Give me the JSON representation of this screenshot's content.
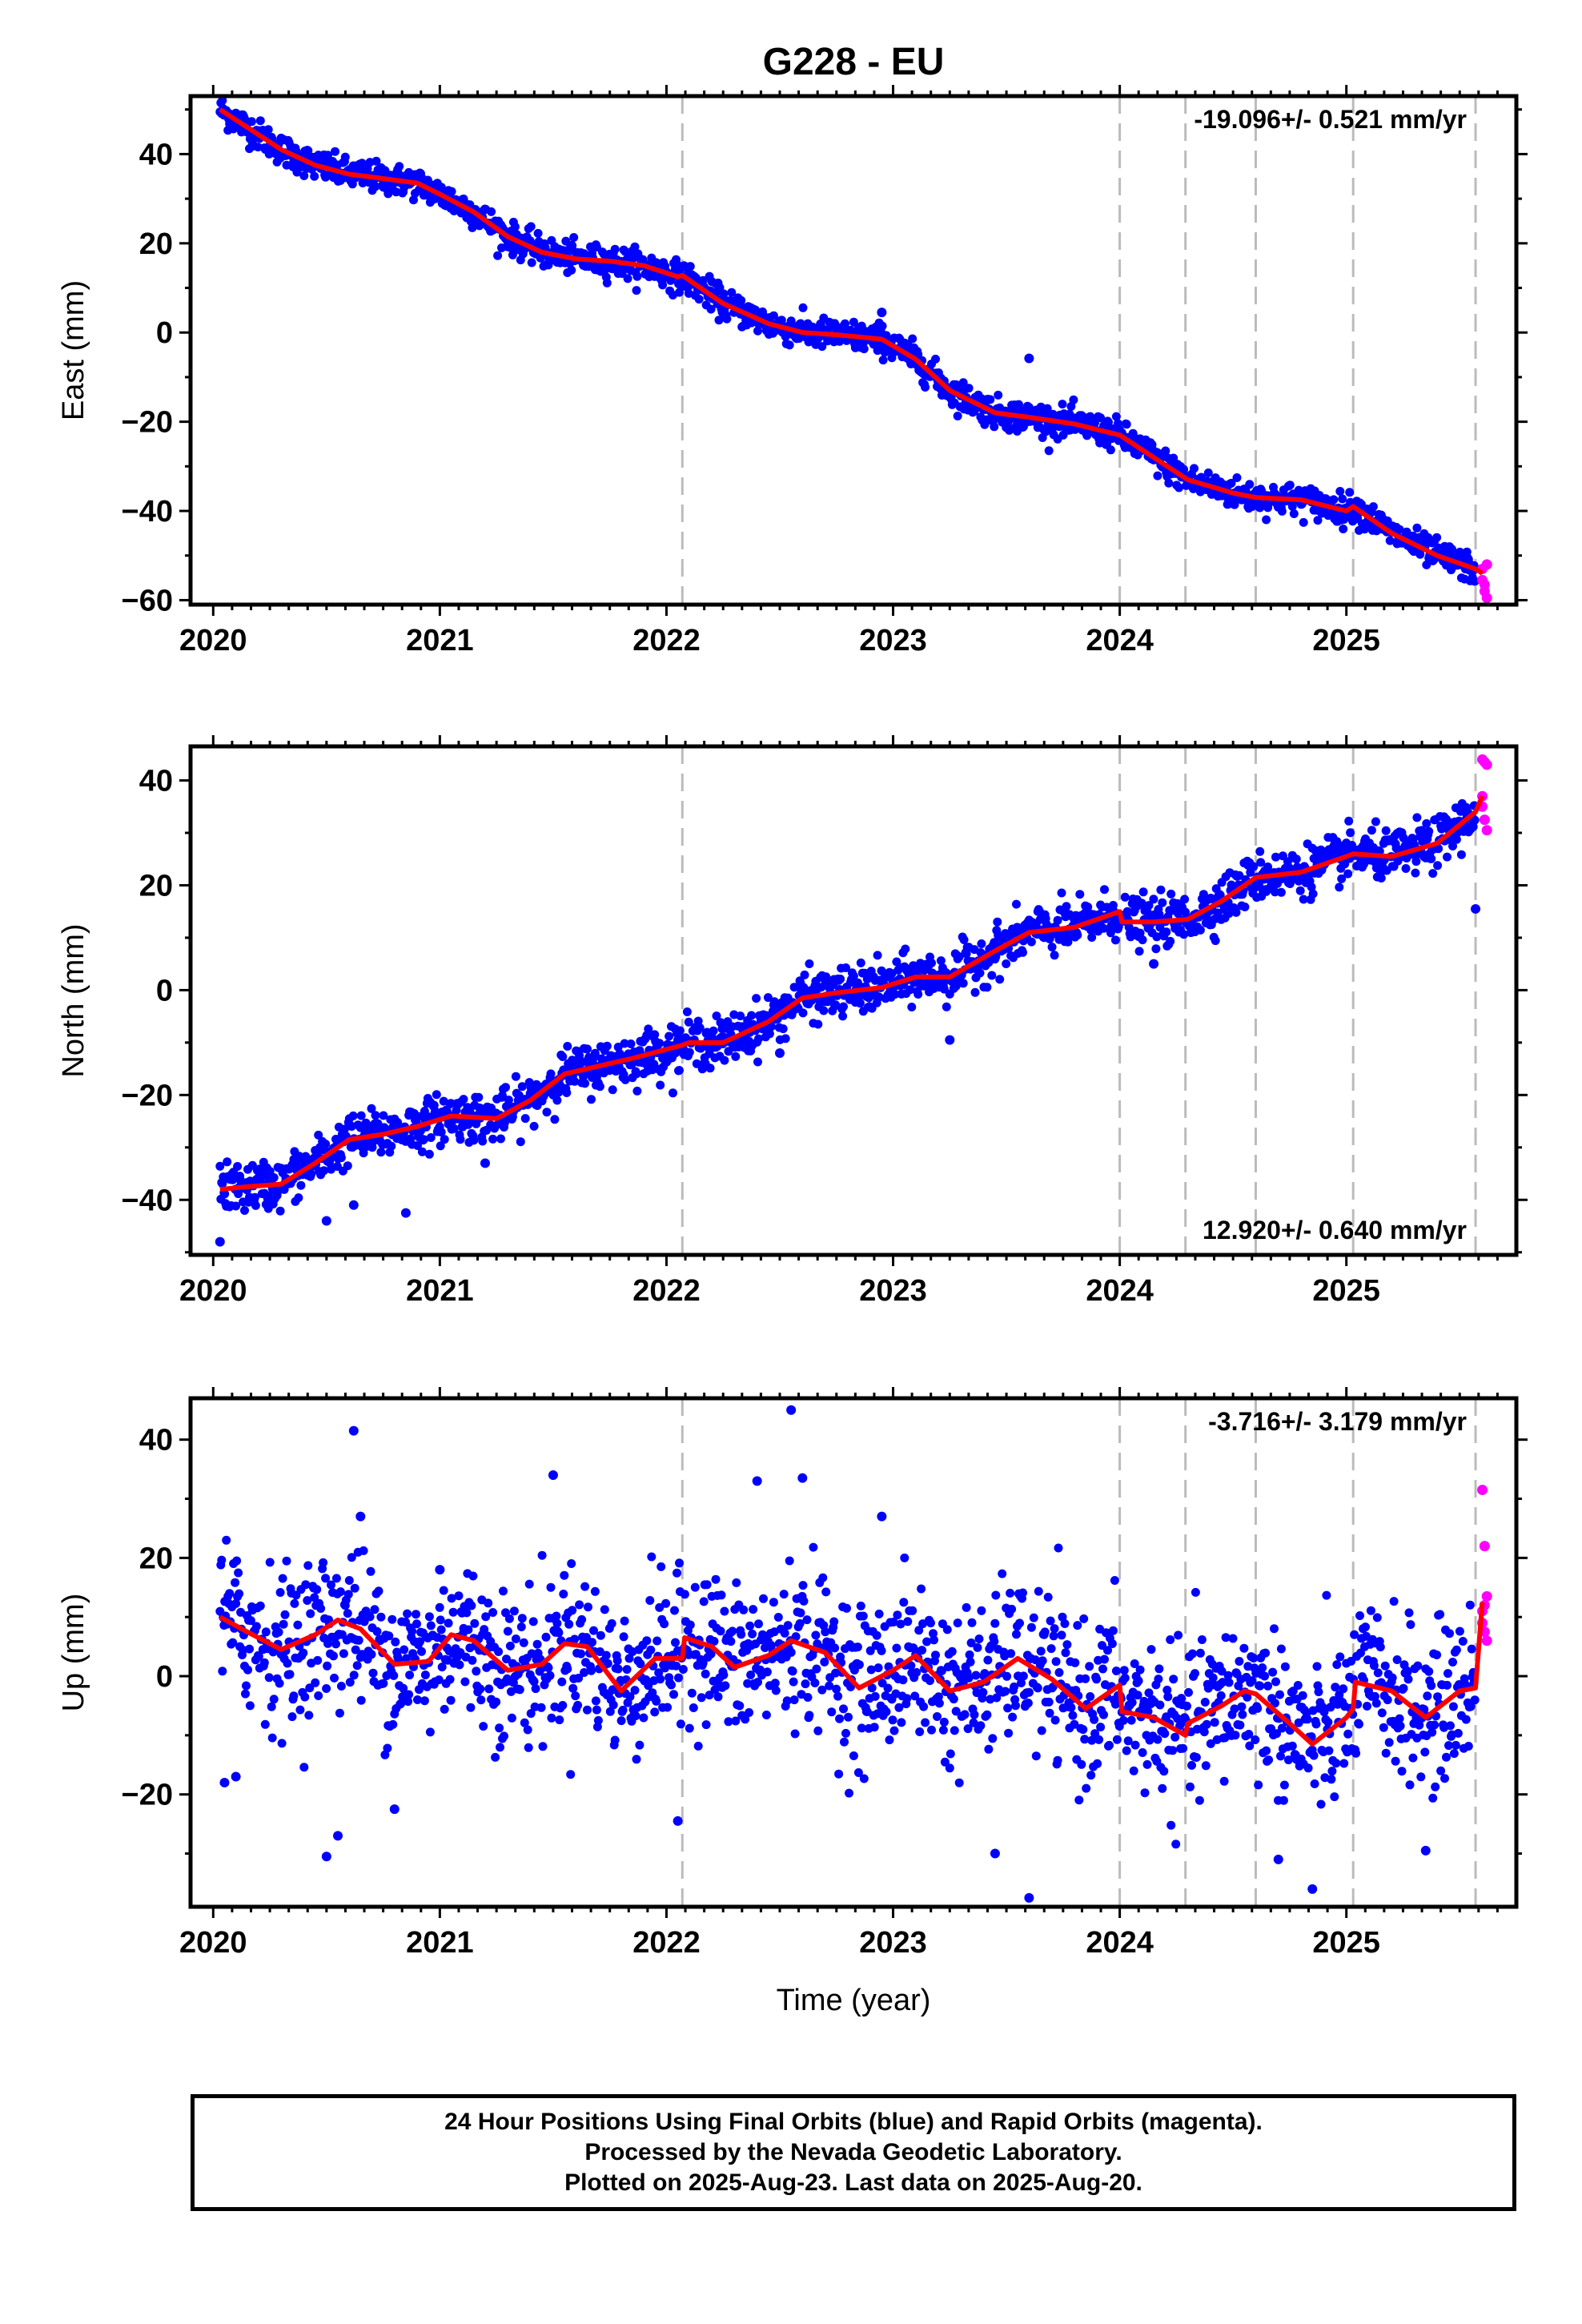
{
  "title": "G228 - EU",
  "xlabel": "Time (year)",
  "footer": {
    "line1": "24 Hour Positions Using Final Orbits (blue) and Rapid Orbits (magenta).",
    "line2": "Processed by the Nevada Geodetic Laboratory.",
    "line3": "Plotted on 2025-Aug-23. Last data on 2025-Aug-20."
  },
  "colors": {
    "final_orbits": "#0000ff",
    "rapid_orbits": "#ff00ff",
    "model": "#ff0000",
    "events": "#bbbbbb"
  },
  "chart_data": [
    {
      "type": "scatter",
      "ylabel": "East (mm)",
      "rate_text": "-19.096+/- 0.521 mm/yr",
      "rate_position": "top-right",
      "xlim": [
        2019.9,
        2025.75
      ],
      "ylim": [
        -61,
        53
      ],
      "xticks": [
        2020,
        2021,
        2022,
        2023,
        2024,
        2025
      ],
      "yticks": [
        40,
        20,
        0,
        -20,
        -40,
        -60
      ],
      "ytick_labels": [
        "40",
        "20",
        "0",
        "−20",
        "−40",
        "−60"
      ],
      "event_lines": [
        2022.07,
        2024.0,
        2024.29,
        2024.6,
        2025.03,
        2025.57
      ],
      "model": {
        "x": [
          2020.03,
          2020.15,
          2020.3,
          2020.45,
          2020.6,
          2020.75,
          2020.9,
          2021.0,
          2021.15,
          2021.3,
          2021.45,
          2021.6,
          2021.75,
          2021.9,
          2022.05,
          2022.07,
          2022.25,
          2022.45,
          2022.6,
          2022.75,
          2022.95,
          2023.1,
          2023.25,
          2023.45,
          2023.6,
          2023.8,
          2024.0,
          2024.15,
          2024.3,
          2024.5,
          2024.6,
          2024.8,
          2025.0,
          2025.03,
          2025.2,
          2025.4,
          2025.57,
          2025.6
        ],
        "y": [
          50,
          46,
          41,
          37.5,
          35.5,
          34.5,
          33.5,
          31,
          27,
          21.5,
          18,
          16.5,
          16,
          15,
          12.5,
          12.8,
          6.5,
          2,
          0,
          -0.5,
          -1.5,
          -6,
          -13,
          -18,
          -19,
          -20.5,
          -23,
          -28,
          -33,
          -36,
          -37,
          -37.5,
          -40,
          -39,
          -45,
          -50,
          -53,
          -54
        ]
      },
      "noise_scale": 1.7,
      "outliers": [
        [
          2023.6,
          -5.8
        ],
        [
          2022.95,
          4.5
        ]
      ],
      "rapid": {
        "x": [
          2025.6,
          2025.61,
          2025.62,
          2025.6,
          2025.62,
          2025.61
        ],
        "y": [
          -55.5,
          -58,
          -59.5,
          -53,
          -52,
          -56.5
        ]
      }
    },
    {
      "type": "scatter",
      "ylabel": "North (mm)",
      "rate_text": "12.920+/- 0.640 mm/yr",
      "rate_position": "bottom-right",
      "xlim": [
        2019.9,
        2025.75
      ],
      "ylim": [
        -50.5,
        46.5
      ],
      "xticks": [
        2020,
        2021,
        2022,
        2023,
        2024,
        2025
      ],
      "yticks": [
        40,
        20,
        0,
        -20,
        -40
      ],
      "ytick_labels": [
        "40",
        "20",
        "0",
        "−20",
        "−40"
      ],
      "event_lines": [
        2022.07,
        2024.0,
        2024.29,
        2024.6,
        2025.03,
        2025.57
      ],
      "model": {
        "x": [
          2020.03,
          2020.15,
          2020.3,
          2020.45,
          2020.6,
          2020.75,
          2020.9,
          2021.05,
          2021.25,
          2021.4,
          2021.55,
          2021.7,
          2021.85,
          2022.07,
          2022.1,
          2022.25,
          2022.45,
          2022.6,
          2022.75,
          2022.95,
          2023.1,
          2023.25,
          2023.45,
          2023.6,
          2023.8,
          2024.0,
          2024.01,
          2024.15,
          2024.3,
          2024.45,
          2024.6,
          2024.8,
          2025.0,
          2025.03,
          2025.2,
          2025.4,
          2025.57,
          2025.6
        ],
        "y": [
          -38,
          -37.5,
          -37,
          -33,
          -28.5,
          -27.5,
          -26,
          -24,
          -24.5,
          -21,
          -16,
          -14.5,
          -13,
          -10.5,
          -10,
          -10,
          -6,
          -1.5,
          -0.5,
          0.5,
          2.5,
          2.5,
          7.5,
          11,
          12,
          15,
          13,
          13,
          13.5,
          17,
          21.5,
          22.5,
          25.5,
          26,
          25.5,
          28,
          34,
          37
        ]
      },
      "noise_scale": 2.3,
      "outliers": [
        [
          2020.03,
          -48
        ],
        [
          2020.5,
          -44
        ],
        [
          2020.62,
          -41
        ],
        [
          2020.85,
          -42.5
        ],
        [
          2021.2,
          -33
        ],
        [
          2023.25,
          -9.5
        ],
        [
          2025.57,
          15.5
        ],
        [
          2024.15,
          5
        ],
        [
          2022.5,
          -12
        ]
      ],
      "rapid": {
        "x": [
          2025.6,
          2025.61,
          2025.62,
          2025.6,
          2025.61,
          2025.62,
          2025.6
        ],
        "y": [
          44,
          43.5,
          43,
          35,
          32.5,
          30.5,
          37
        ]
      }
    },
    {
      "type": "scatter",
      "ylabel": "Up (mm)",
      "rate_text": "-3.716+/- 3.179 mm/yr",
      "rate_position": "top-right",
      "xlim": [
        2019.9,
        2025.75
      ],
      "ylim": [
        -39,
        47
      ],
      "xticks": [
        2020,
        2021,
        2022,
        2023,
        2024,
        2025
      ],
      "yticks": [
        40,
        20,
        0,
        -20
      ],
      "ytick_labels": [
        "40",
        "20",
        "0",
        "−20"
      ],
      "event_lines": [
        2022.07,
        2024.0,
        2024.29,
        2024.6,
        2025.03,
        2025.57
      ],
      "model": {
        "x": [
          2020.03,
          2020.15,
          2020.3,
          2020.45,
          2020.55,
          2020.65,
          2020.8,
          2020.95,
          2021.05,
          2021.15,
          2021.3,
          2021.45,
          2021.55,
          2021.65,
          2021.8,
          2021.95,
          2022.07,
          2022.08,
          2022.2,
          2022.3,
          2022.45,
          2022.55,
          2022.7,
          2022.85,
          2023.0,
          2023.1,
          2023.25,
          2023.4,
          2023.55,
          2023.7,
          2023.85,
          2024.0,
          2024.01,
          2024.15,
          2024.29,
          2024.3,
          2024.45,
          2024.55,
          2024.6,
          2024.75,
          2024.85,
          2025.0,
          2025.03,
          2025.04,
          2025.2,
          2025.35,
          2025.5,
          2025.57,
          2025.6
        ],
        "y": [
          10,
          7.5,
          4.5,
          7,
          9.5,
          8,
          2,
          2.5,
          7,
          6,
          1,
          2,
          5.5,
          5,
          -2.5,
          3,
          3,
          6.5,
          5,
          1.5,
          3.5,
          6,
          4,
          -2,
          1,
          3.5,
          -2.5,
          -1,
          3,
          -0.5,
          -5.5,
          -1.5,
          -6,
          -7,
          -10,
          -8,
          -5,
          -2.5,
          -3,
          -8,
          -11.5,
          -7,
          -5.5,
          -1,
          -2.5,
          -7,
          -2.5,
          -2,
          12.5
        ]
      },
      "noise_scale": 6.5,
      "outliers": [
        [
          2020.5,
          -30.5
        ],
        [
          2020.55,
          -27
        ],
        [
          2020.62,
          41.5
        ],
        [
          2020.65,
          27
        ],
        [
          2020.8,
          -22.5
        ],
        [
          2021.5,
          34
        ],
        [
          2022.05,
          -24.5
        ],
        [
          2022.55,
          45
        ],
        [
          2022.6,
          33.5
        ],
        [
          2022.4,
          33
        ],
        [
          2023.6,
          -37.5
        ],
        [
          2023.45,
          -30
        ],
        [
          2024.85,
          -36
        ],
        [
          2024.7,
          -31
        ],
        [
          2025.35,
          -29.5
        ],
        [
          2020.05,
          -18
        ],
        [
          2020.1,
          -17
        ],
        [
          2021.0,
          18
        ],
        [
          2022.95,
          27
        ]
      ],
      "rapid": {
        "x": [
          2025.6,
          2025.61,
          2025.62,
          2025.6,
          2025.61,
          2025.62,
          2025.6,
          2025.61
        ],
        "y": [
          31.5,
          22,
          13.5,
          9,
          7.5,
          6,
          11,
          12
        ]
      }
    }
  ]
}
